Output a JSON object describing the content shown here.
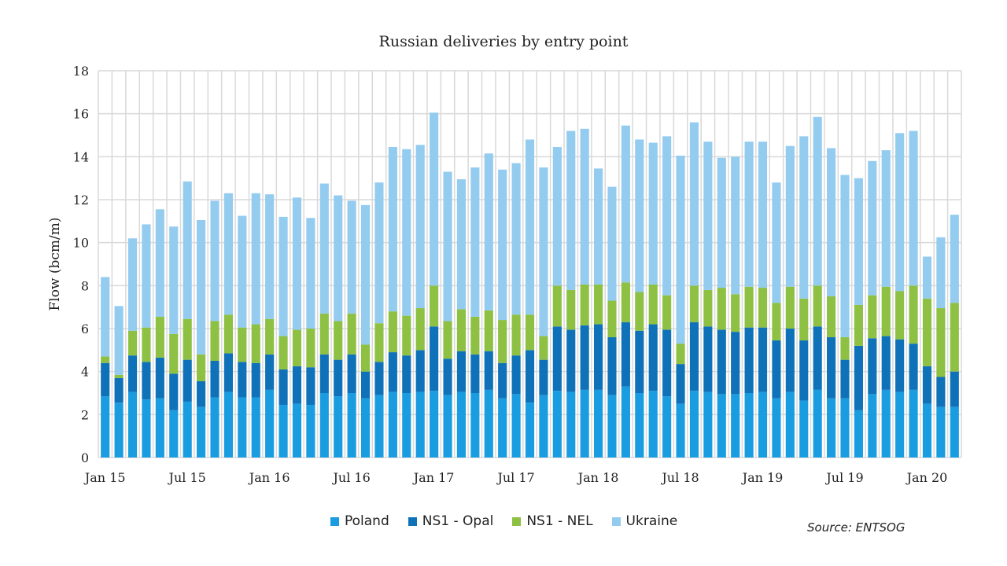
{
  "chart_data": {
    "type": "bar",
    "stacked": true,
    "title": "Russian deliveries by entry point",
    "xlabel": "",
    "ylabel": "Flow (bcm/m)",
    "ylim": [
      0,
      18
    ],
    "y_ticks": [
      0,
      2,
      4,
      6,
      8,
      10,
      12,
      14,
      16,
      18
    ],
    "grid": true,
    "legend": "bottom",
    "source": "Source: ENTSOG",
    "categories": [
      "Jan 15",
      "Feb 15",
      "Mar 15",
      "Apr 15",
      "May 15",
      "Jun 15",
      "Jul 15",
      "Aug 15",
      "Sep 15",
      "Oct 15",
      "Nov 15",
      "Dec 15",
      "Jan 16",
      "Feb 16",
      "Mar 16",
      "Apr 16",
      "May 16",
      "Jun 16",
      "Jul 16",
      "Aug 16",
      "Sep 16",
      "Oct 16",
      "Nov 16",
      "Dec 16",
      "Jan 17",
      "Feb 17",
      "Mar 17",
      "Apr 17",
      "May 17",
      "Jun 17",
      "Jul 17",
      "Aug 17",
      "Sep 17",
      "Oct 17",
      "Nov 17",
      "Dec 17",
      "Jan 18",
      "Feb 18",
      "Mar 18",
      "Apr 18",
      "May 18",
      "Jun 18",
      "Jul 18",
      "Aug 18",
      "Sep 18",
      "Oct 18",
      "Nov 18",
      "Dec 18",
      "Jan 19",
      "Feb 19",
      "Mar 19",
      "Apr 19",
      "May 19",
      "Jun 19",
      "Jul 19",
      "Aug 19",
      "Sep 19",
      "Oct 19",
      "Nov 19",
      "Dec 19",
      "Jan 20",
      "Feb 20",
      "Mar 20"
    ],
    "x_tick_labels": [
      "Jan 15",
      "Jul 15",
      "Jan 16",
      "Jul 16",
      "Jan 17",
      "Jul 17",
      "Jan 18",
      "Jul 18",
      "Jan 19",
      "Jul 19",
      "Jan 20"
    ],
    "series": [
      {
        "name": "Poland",
        "color": "#1a9de0",
        "values": [
          2.85,
          2.55,
          3.05,
          2.7,
          2.75,
          2.2,
          2.6,
          2.35,
          2.8,
          3.05,
          2.8,
          2.8,
          3.15,
          2.45,
          2.5,
          2.45,
          3.0,
          2.85,
          3.0,
          2.75,
          2.9,
          3.05,
          3.0,
          3.05,
          3.1,
          2.9,
          3.05,
          3.0,
          3.15,
          2.75,
          2.95,
          2.55,
          2.9,
          3.1,
          3.05,
          3.15,
          3.15,
          2.9,
          3.3,
          3.0,
          3.1,
          2.85,
          2.5,
          3.1,
          3.05,
          2.95,
          2.95,
          3.0,
          3.05,
          2.75,
          3.05,
          2.65,
          3.15,
          2.75,
          2.75,
          2.2,
          2.95,
          3.15,
          3.05,
          3.15,
          2.5,
          2.35,
          2.35
        ]
      },
      {
        "name": "NS1 - Opal",
        "color": "#0f72b8",
        "values": [
          1.55,
          1.15,
          1.7,
          1.75,
          1.9,
          1.7,
          1.95,
          1.2,
          1.7,
          1.8,
          1.65,
          1.6,
          1.65,
          1.65,
          1.75,
          1.75,
          1.8,
          1.7,
          1.8,
          1.25,
          1.55,
          1.85,
          1.75,
          1.95,
          3.0,
          1.7,
          1.9,
          1.8,
          1.8,
          1.65,
          1.8,
          2.45,
          1.65,
          3.0,
          2.9,
          3.0,
          3.05,
          2.7,
          3.0,
          2.9,
          3.1,
          3.1,
          1.85,
          3.2,
          3.05,
          3.0,
          2.9,
          3.05,
          3.0,
          2.7,
          2.95,
          2.8,
          2.95,
          2.85,
          1.8,
          3.0,
          2.6,
          2.5,
          2.45,
          2.15,
          1.75,
          1.4,
          1.65
        ]
      },
      {
        "name": "NS1 - NEL",
        "color": "#8dc043",
        "values": [
          0.3,
          0.15,
          1.15,
          1.6,
          1.9,
          1.85,
          1.9,
          1.25,
          1.85,
          1.8,
          1.6,
          1.8,
          1.65,
          1.55,
          1.7,
          1.8,
          1.9,
          1.8,
          1.9,
          1.25,
          1.8,
          1.9,
          1.85,
          1.95,
          1.9,
          1.75,
          1.95,
          1.75,
          1.9,
          2.0,
          1.9,
          1.65,
          1.1,
          1.9,
          1.85,
          1.9,
          1.85,
          1.7,
          1.85,
          1.8,
          1.85,
          1.6,
          0.95,
          1.7,
          1.7,
          1.95,
          1.75,
          1.9,
          1.85,
          1.75,
          1.95,
          1.95,
          1.9,
          1.9,
          1.05,
          1.9,
          2.0,
          2.3,
          2.25,
          2.7,
          3.15,
          3.2,
          3.2
        ]
      },
      {
        "name": "Ukraine",
        "color": "#94ccf0",
        "values": [
          3.7,
          3.2,
          4.3,
          4.8,
          5.0,
          5.0,
          6.4,
          6.25,
          5.6,
          5.65,
          5.2,
          6.1,
          5.8,
          5.55,
          6.15,
          5.15,
          6.05,
          5.85,
          5.25,
          6.5,
          6.55,
          7.65,
          7.75,
          7.6,
          8.05,
          6.95,
          6.05,
          6.95,
          7.3,
          7.0,
          7.05,
          8.15,
          7.85,
          6.45,
          7.4,
          7.25,
          5.4,
          5.3,
          7.3,
          7.1,
          6.6,
          7.4,
          8.75,
          7.6,
          6.9,
          6.05,
          6.4,
          6.75,
          6.8,
          5.6,
          6.55,
          7.55,
          7.85,
          6.9,
          7.55,
          5.9,
          6.25,
          6.35,
          7.35,
          7.2,
          1.95,
          3.3,
          4.1
        ]
      }
    ]
  }
}
